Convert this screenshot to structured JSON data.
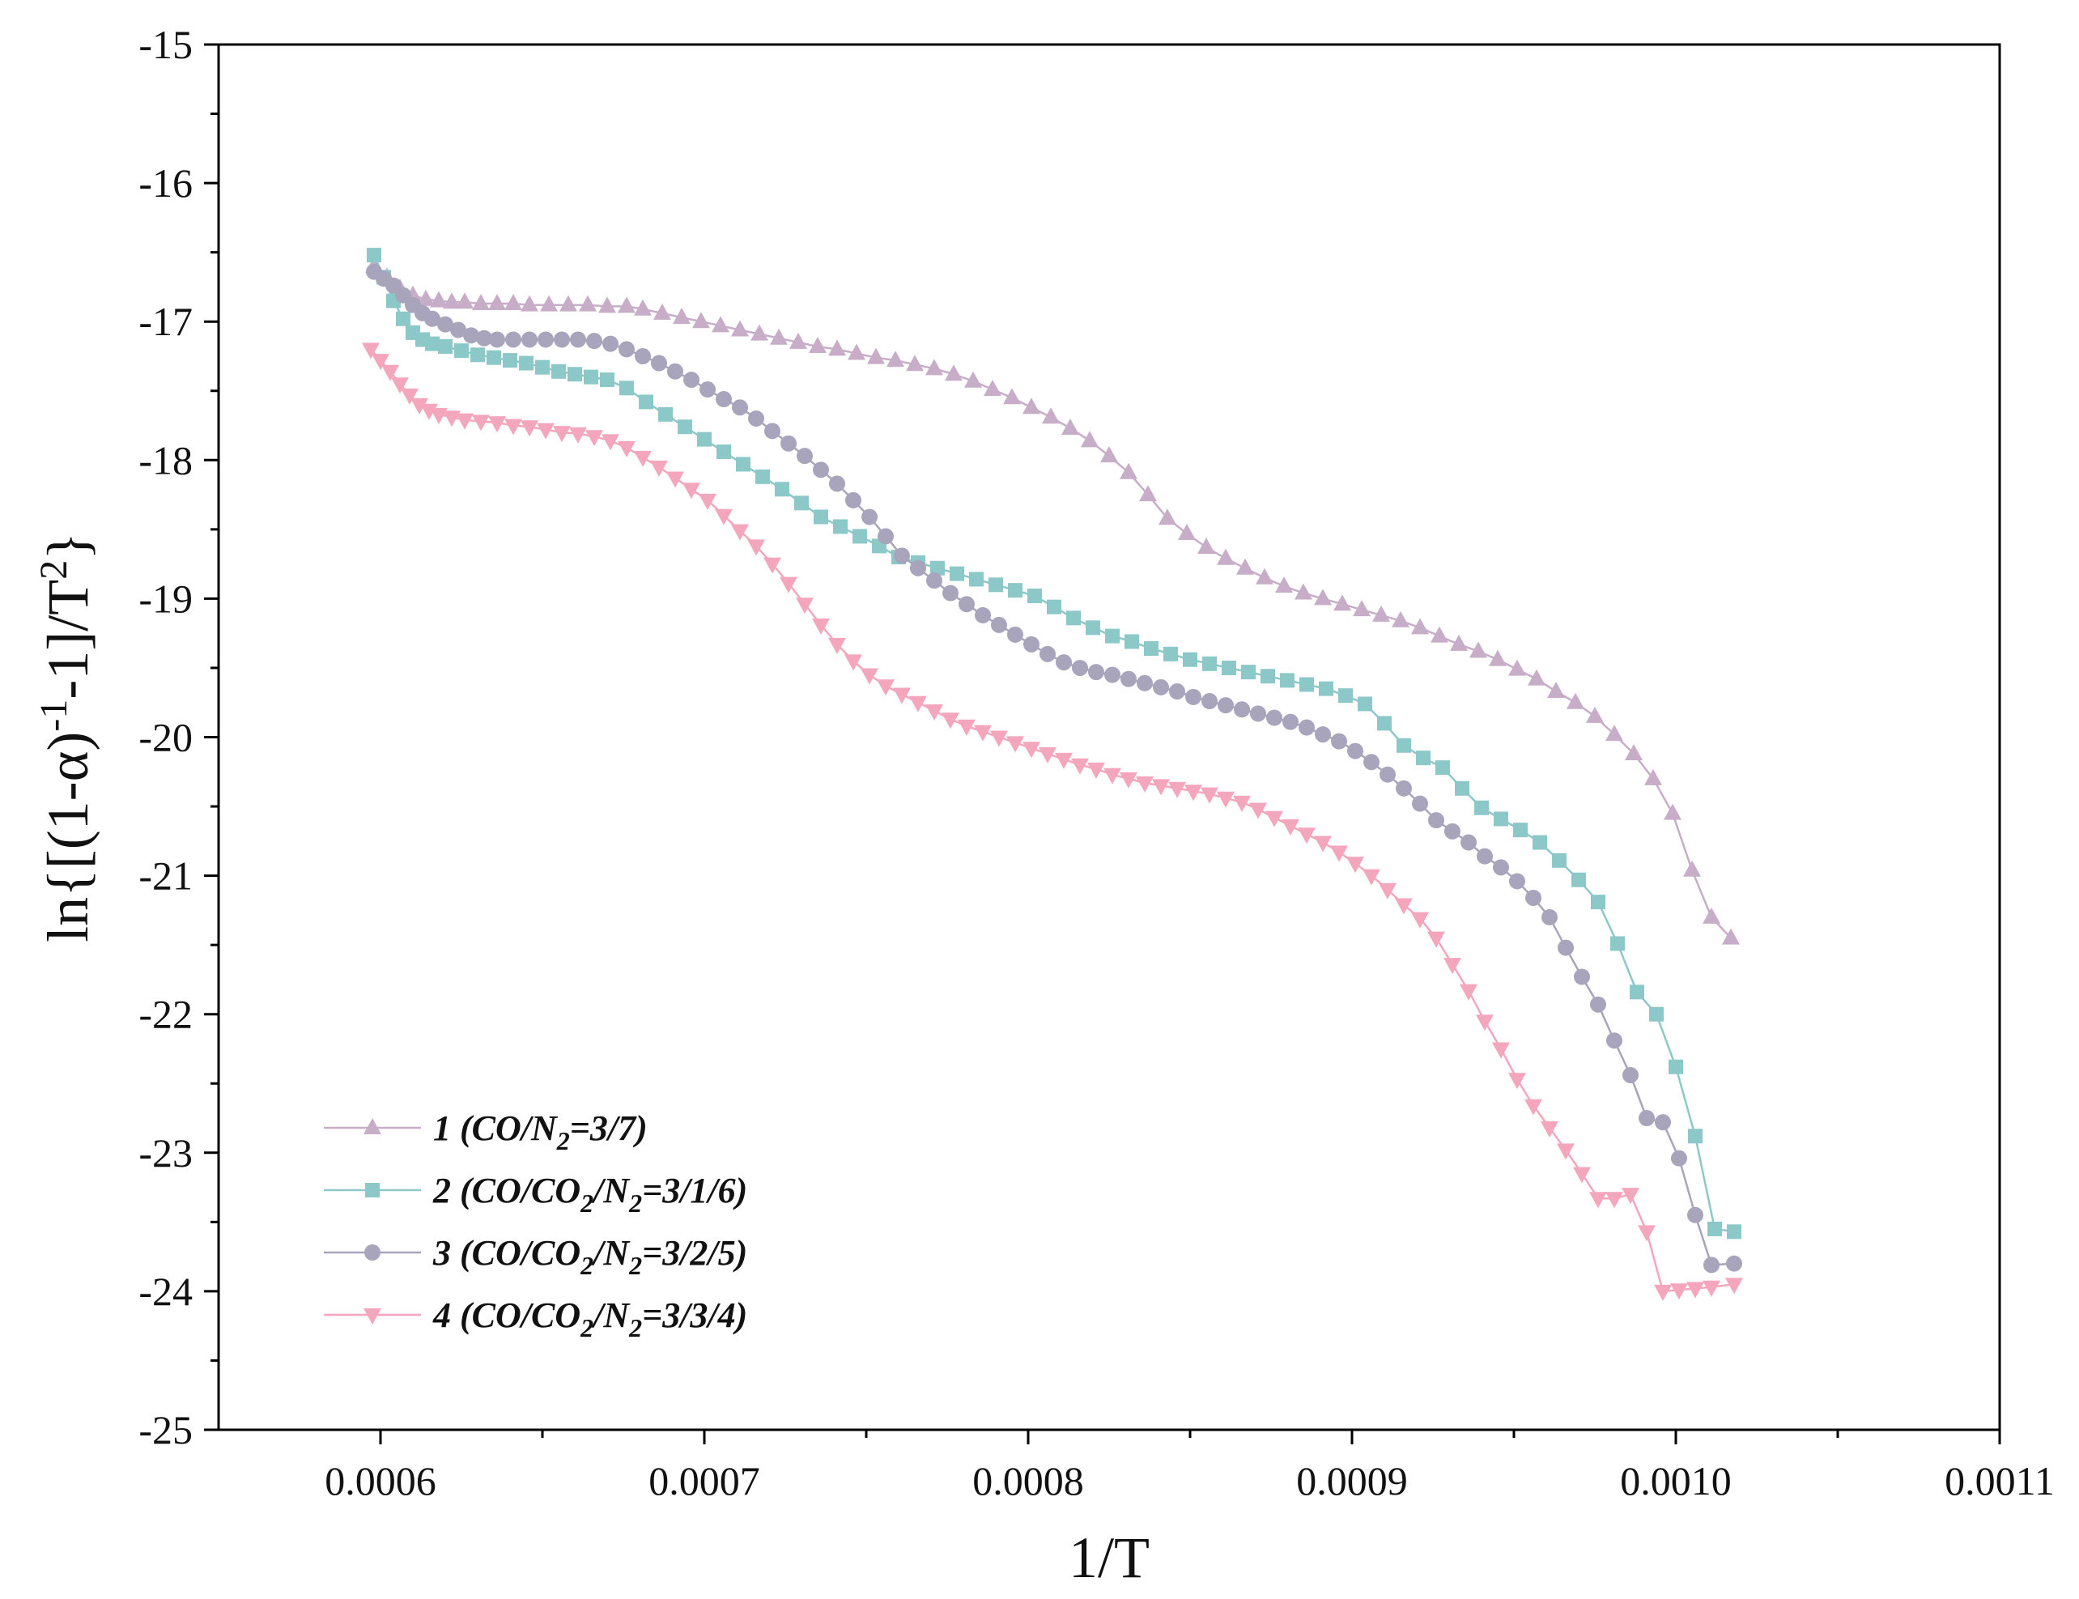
{
  "chart_data": {
    "type": "line",
    "xlabel": "1/T",
    "ylabel_parts": [
      "ln{[(1-α)",
      "-1",
      "-1]/T",
      "2",
      "}"
    ],
    "xlim": [
      0.00055,
      0.0011
    ],
    "ylim": [
      -25,
      -15
    ],
    "x_ticks": [
      0.0006,
      0.0007,
      0.0008,
      0.0009,
      0.001,
      0.0011
    ],
    "x_tick_labels": [
      "0.0006",
      "0.0007",
      "0.0008",
      "0.0009",
      "0.0010",
      "0.0011"
    ],
    "y_ticks": [
      -15,
      -16,
      -17,
      -18,
      -19,
      -20,
      -21,
      -22,
      -23,
      -24,
      -25
    ],
    "y_tick_labels": [
      "-15",
      "-16",
      "-17",
      "-18",
      "-19",
      "-20",
      "-21",
      "-22",
      "-23",
      "-24",
      "-25"
    ],
    "grid": false,
    "legend_position": "bottom-left",
    "series": [
      {
        "name": "1 (CO/N2=3/7)",
        "legend_parts": [
          [
            "1 (CO/N",
            false
          ],
          [
            "2",
            true
          ],
          [
            "=3/7)",
            false
          ]
        ],
        "color": "#c8adc8",
        "marker": "triangle-up",
        "x": [
          0.000598,
          0.000602,
          0.000606,
          0.00061,
          0.000614,
          0.000618,
          0.000622,
          0.000626,
          0.000631,
          0.000636,
          0.000641,
          0.000646,
          0.000652,
          0.000658,
          0.000664,
          0.00067,
          0.000676,
          0.000681,
          0.000687,
          0.000693,
          0.000699,
          0.000705,
          0.000711,
          0.000717,
          0.000723,
          0.000729,
          0.000735,
          0.000741,
          0.000747,
          0.000753,
          0.000759,
          0.000765,
          0.000771,
          0.000777,
          0.000783,
          0.000789,
          0.000795,
          0.000801,
          0.000807,
          0.000813,
          0.000819,
          0.000825,
          0.000831,
          0.000837,
          0.000843,
          0.000849,
          0.000855,
          0.000861,
          0.000867,
          0.000873,
          0.000879,
          0.000885,
          0.000891,
          0.000897,
          0.000903,
          0.000909,
          0.000915,
          0.000921,
          0.000927,
          0.000933,
          0.000939,
          0.000945,
          0.000951,
          0.000957,
          0.000963,
          0.000969,
          0.000975,
          0.000981,
          0.000987,
          0.000993,
          0.000999,
          0.001005,
          0.001011,
          0.001017
        ],
        "values": [
          -16.6,
          -16.68,
          -16.76,
          -16.81,
          -16.84,
          -16.85,
          -16.86,
          -16.86,
          -16.87,
          -16.87,
          -16.87,
          -16.88,
          -16.88,
          -16.88,
          -16.88,
          -16.89,
          -16.89,
          -16.91,
          -16.94,
          -16.97,
          -17.0,
          -17.03,
          -17.06,
          -17.09,
          -17.12,
          -17.15,
          -17.18,
          -17.2,
          -17.23,
          -17.26,
          -17.28,
          -17.31,
          -17.34,
          -17.38,
          -17.43,
          -17.49,
          -17.55,
          -17.62,
          -17.69,
          -17.77,
          -17.86,
          -17.97,
          -18.09,
          -18.25,
          -18.42,
          -18.53,
          -18.63,
          -18.71,
          -18.78,
          -18.85,
          -18.91,
          -18.96,
          -19.0,
          -19.04,
          -19.08,
          -19.12,
          -19.16,
          -19.21,
          -19.27,
          -19.33,
          -19.38,
          -19.44,
          -19.51,
          -19.58,
          -19.67,
          -19.75,
          -19.85,
          -19.98,
          -20.12,
          -20.3,
          -20.55,
          -20.96,
          -21.3,
          -21.45
        ]
      },
      {
        "name": "2 (CO/CO2/N2=3/1/6)",
        "legend_parts": [
          [
            "2 (CO/CO",
            false
          ],
          [
            "2",
            true
          ],
          [
            "/N",
            false
          ],
          [
            "2",
            true
          ],
          [
            "=3/1/6)",
            false
          ]
        ],
        "color": "#8cc8c8",
        "marker": "square",
        "x": [
          0.000598,
          0.000601,
          0.000604,
          0.000607,
          0.00061,
          0.000613,
          0.000616,
          0.00062,
          0.000625,
          0.00063,
          0.000635,
          0.00064,
          0.000645,
          0.00065,
          0.000655,
          0.00066,
          0.000665,
          0.00067,
          0.000676,
          0.000682,
          0.000688,
          0.000694,
          0.0007,
          0.000706,
          0.000712,
          0.000718,
          0.000724,
          0.00073,
          0.000736,
          0.000742,
          0.000748,
          0.000754,
          0.00076,
          0.000766,
          0.000772,
          0.000778,
          0.000784,
          0.00079,
          0.000796,
          0.000802,
          0.000808,
          0.000814,
          0.00082,
          0.000826,
          0.000832,
          0.000838,
          0.000844,
          0.00085,
          0.000856,
          0.000862,
          0.000868,
          0.000874,
          0.00088,
          0.000886,
          0.000892,
          0.000898,
          0.000904,
          0.00091,
          0.000916,
          0.000922,
          0.000928,
          0.000934,
          0.00094,
          0.000946,
          0.000952,
          0.000958,
          0.000964,
          0.00097,
          0.000976,
          0.000982,
          0.000988,
          0.000994,
          0.001,
          0.001006,
          0.001012,
          0.001018
        ],
        "values": [
          -16.52,
          -16.68,
          -16.85,
          -16.98,
          -17.08,
          -17.13,
          -17.16,
          -17.18,
          -17.21,
          -17.24,
          -17.26,
          -17.28,
          -17.3,
          -17.33,
          -17.36,
          -17.38,
          -17.4,
          -17.42,
          -17.48,
          -17.58,
          -17.67,
          -17.76,
          -17.85,
          -17.94,
          -18.03,
          -18.12,
          -18.21,
          -18.31,
          -18.41,
          -18.48,
          -18.55,
          -18.62,
          -18.7,
          -18.74,
          -18.78,
          -18.82,
          -18.86,
          -18.9,
          -18.94,
          -18.98,
          -19.06,
          -19.14,
          -19.21,
          -19.27,
          -19.31,
          -19.36,
          -19.4,
          -19.44,
          -19.47,
          -19.5,
          -19.53,
          -19.56,
          -19.59,
          -19.62,
          -19.65,
          -19.7,
          -19.76,
          -19.9,
          -20.06,
          -20.15,
          -20.22,
          -20.37,
          -20.51,
          -20.59,
          -20.67,
          -20.76,
          -20.89,
          -21.03,
          -21.19,
          -21.49,
          -21.84,
          -22.0,
          -22.38,
          -22.88,
          -23.55,
          -23.57
        ]
      },
      {
        "name": "3 (CO/CO2/N2=3/2/5)",
        "legend_parts": [
          [
            "3 (CO/CO",
            false
          ],
          [
            "2",
            true
          ],
          [
            "/N",
            false
          ],
          [
            "2",
            true
          ],
          [
            "=3/2/5)",
            false
          ]
        ],
        "color": "#a8a4bc",
        "marker": "circle",
        "x": [
          0.000598,
          0.000601,
          0.000604,
          0.000607,
          0.00061,
          0.000613,
          0.000616,
          0.00062,
          0.000624,
          0.000628,
          0.000632,
          0.000636,
          0.000641,
          0.000646,
          0.000651,
          0.000656,
          0.000661,
          0.000666,
          0.000671,
          0.000676,
          0.000681,
          0.000686,
          0.000691,
          0.000696,
          0.000701,
          0.000706,
          0.000711,
          0.000716,
          0.000721,
          0.000726,
          0.000731,
          0.000736,
          0.000741,
          0.000746,
          0.000751,
          0.000756,
          0.000761,
          0.000766,
          0.000771,
          0.000776,
          0.000781,
          0.000786,
          0.000791,
          0.000796,
          0.000801,
          0.000806,
          0.000811,
          0.000816,
          0.000821,
          0.000826,
          0.000831,
          0.000836,
          0.000841,
          0.000846,
          0.000851,
          0.000856,
          0.000861,
          0.000866,
          0.000871,
          0.000876,
          0.000881,
          0.000886,
          0.000891,
          0.000896,
          0.000901,
          0.000906,
          0.000911,
          0.000916,
          0.000921,
          0.000926,
          0.000931,
          0.000936,
          0.000941,
          0.000946,
          0.000951,
          0.000956,
          0.000961,
          0.000966,
          0.000971,
          0.000976,
          0.000981,
          0.000986,
          0.000991,
          0.000996,
          0.001001,
          0.001006,
          0.001011,
          0.001018
        ],
        "values": [
          -16.64,
          -16.69,
          -16.74,
          -16.81,
          -16.88,
          -16.94,
          -16.98,
          -17.02,
          -17.06,
          -17.1,
          -17.12,
          -17.13,
          -17.13,
          -17.13,
          -17.13,
          -17.13,
          -17.13,
          -17.14,
          -17.16,
          -17.2,
          -17.25,
          -17.3,
          -17.36,
          -17.42,
          -17.49,
          -17.56,
          -17.62,
          -17.7,
          -17.79,
          -17.88,
          -17.97,
          -18.07,
          -18.17,
          -18.29,
          -18.41,
          -18.55,
          -18.69,
          -18.78,
          -18.87,
          -18.96,
          -19.04,
          -19.12,
          -19.19,
          -19.26,
          -19.33,
          -19.4,
          -19.46,
          -19.5,
          -19.53,
          -19.55,
          -19.58,
          -19.61,
          -19.64,
          -19.67,
          -19.71,
          -19.74,
          -19.77,
          -19.8,
          -19.83,
          -19.86,
          -19.89,
          -19.93,
          -19.98,
          -20.03,
          -20.1,
          -20.18,
          -20.27,
          -20.37,
          -20.48,
          -20.6,
          -20.68,
          -20.76,
          -20.86,
          -20.94,
          -21.04,
          -21.16,
          -21.3,
          -21.52,
          -21.73,
          -21.93,
          -22.19,
          -22.44,
          -22.75,
          -22.78,
          -23.04,
          -23.45,
          -23.81,
          -23.8
        ]
      },
      {
        "name": "4 (CO/CO2/N2=3/3/4)",
        "legend_parts": [
          [
            "4 (CO/CO",
            false
          ],
          [
            "2",
            true
          ],
          [
            "/N",
            false
          ],
          [
            "2",
            true
          ],
          [
            "=3/3/4)",
            false
          ]
        ],
        "color": "#f4a6bc",
        "marker": "triangle-down",
        "x": [
          0.000597,
          0.0006,
          0.000603,
          0.000606,
          0.000609,
          0.000612,
          0.000615,
          0.000618,
          0.000622,
          0.000626,
          0.000631,
          0.000636,
          0.000641,
          0.000646,
          0.000651,
          0.000656,
          0.000661,
          0.000666,
          0.000671,
          0.000676,
          0.000681,
          0.000686,
          0.000691,
          0.000696,
          0.000701,
          0.000706,
          0.000711,
          0.000716,
          0.000721,
          0.000726,
          0.000731,
          0.000736,
          0.000741,
          0.000746,
          0.000751,
          0.000756,
          0.000761,
          0.000766,
          0.000771,
          0.000776,
          0.000781,
          0.000786,
          0.000791,
          0.000796,
          0.000801,
          0.000806,
          0.000811,
          0.000816,
          0.000821,
          0.000826,
          0.000831,
          0.000836,
          0.000841,
          0.000846,
          0.000851,
          0.000856,
          0.000861,
          0.000866,
          0.000871,
          0.000876,
          0.000881,
          0.000886,
          0.000891,
          0.000896,
          0.000901,
          0.000906,
          0.000911,
          0.000916,
          0.000921,
          0.000926,
          0.000931,
          0.000936,
          0.000941,
          0.000946,
          0.000951,
          0.000956,
          0.000961,
          0.000966,
          0.000971,
          0.000976,
          0.000981,
          0.000986,
          0.000991,
          0.000996,
          0.001001,
          0.001006,
          0.001011,
          0.001018
        ],
        "values": [
          -17.2,
          -17.28,
          -17.36,
          -17.45,
          -17.53,
          -17.6,
          -17.64,
          -17.67,
          -17.69,
          -17.71,
          -17.72,
          -17.73,
          -17.75,
          -17.76,
          -17.78,
          -17.8,
          -17.81,
          -17.83,
          -17.86,
          -17.91,
          -17.98,
          -18.05,
          -18.13,
          -18.21,
          -18.29,
          -18.4,
          -18.51,
          -18.62,
          -18.75,
          -18.89,
          -19.04,
          -19.19,
          -19.33,
          -19.45,
          -19.55,
          -19.63,
          -19.69,
          -19.75,
          -19.81,
          -19.87,
          -19.92,
          -19.96,
          -20.0,
          -20.04,
          -20.08,
          -20.12,
          -20.16,
          -20.2,
          -20.23,
          -20.27,
          -20.3,
          -20.33,
          -20.35,
          -20.37,
          -20.39,
          -20.41,
          -20.44,
          -20.47,
          -20.52,
          -20.58,
          -20.64,
          -20.7,
          -20.76,
          -20.83,
          -20.91,
          -21.0,
          -21.1,
          -21.21,
          -21.31,
          -21.45,
          -21.64,
          -21.83,
          -22.05,
          -22.25,
          -22.47,
          -22.66,
          -22.82,
          -22.98,
          -23.15,
          -23.33,
          -23.33,
          -23.3,
          -23.57,
          -24.0,
          -23.99,
          -23.98,
          -23.97,
          -23.95
        ]
      }
    ]
  }
}
